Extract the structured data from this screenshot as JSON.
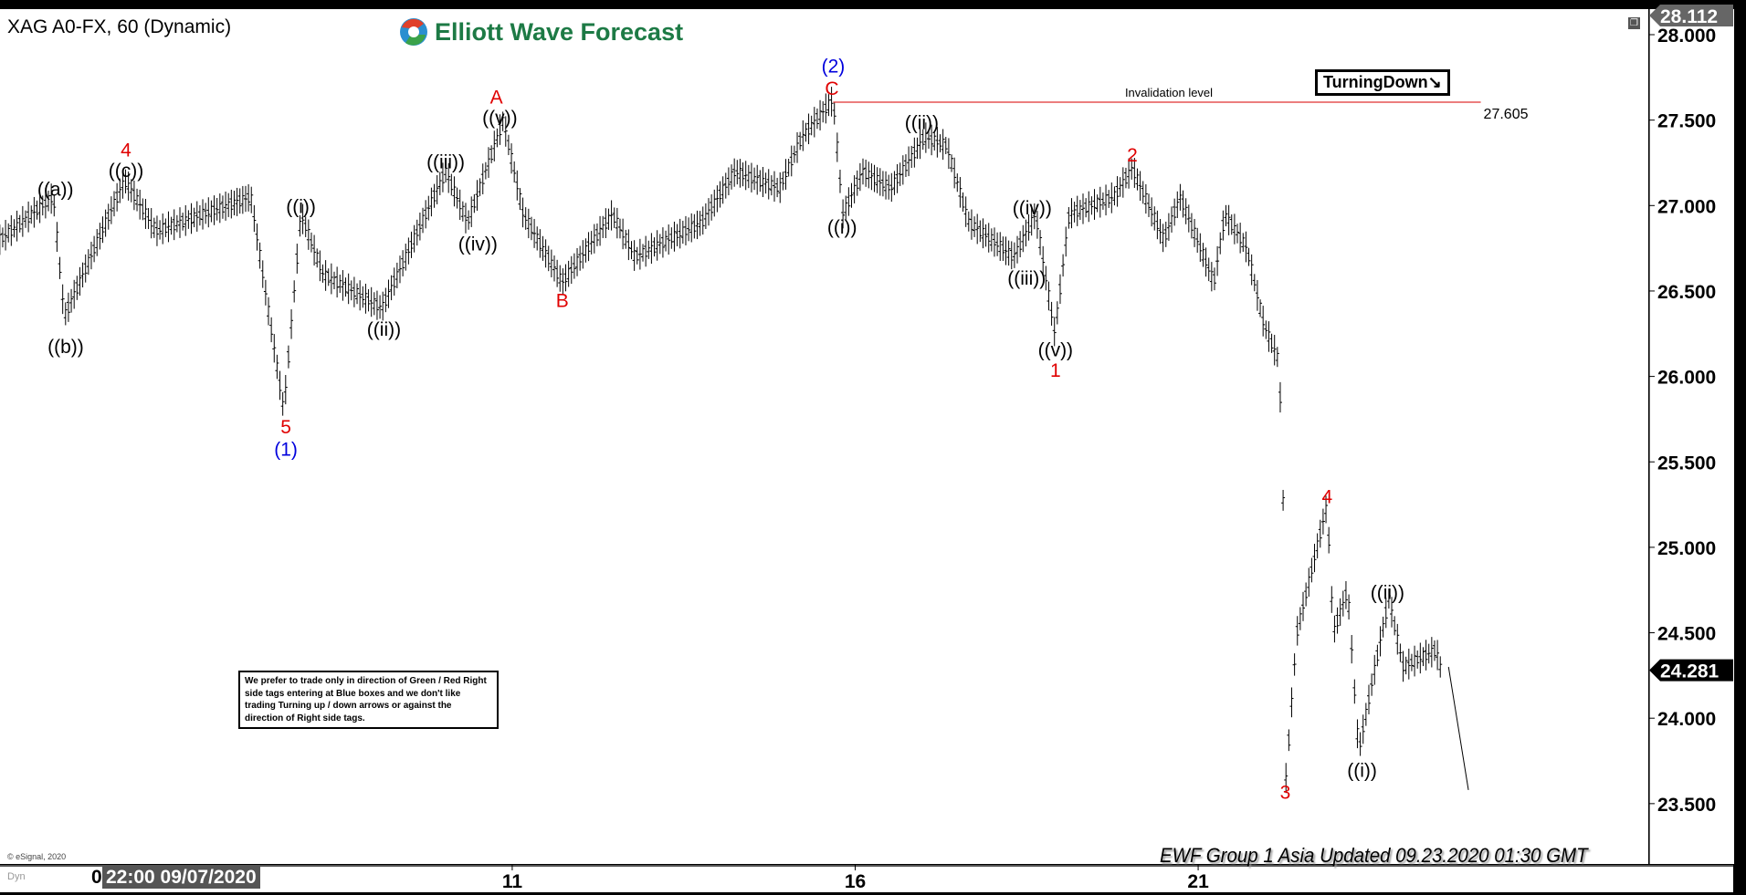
{
  "header": {
    "symbol_title": "XAG A0-FX, 60 (Dynamic)",
    "logo_text": "Elliott Wave Forecast"
  },
  "tags": {
    "turning": "TurningDown↘",
    "invalidation_label": "Invalidation level",
    "invalidation_value": "27.605"
  },
  "note": "We prefer to trade only in direction of Green / Red Right side tags entering at Blue boxes and we don't like trading Turning up / down arrows or against the direction of Right side tags.",
  "footer": {
    "updated": "EWF Group 1 Asia Updated 09.23.2020 01:30 GMT",
    "copyright": "© eSignal, 2020",
    "dyn": "Dyn",
    "start_label": "22:00 09/07/2020",
    "start_prefix": "0"
  },
  "colors": {
    "red": "#e00000",
    "blue": "#0000dd",
    "black": "#000000",
    "invalidation_line": "#e03030"
  },
  "chart_data": {
    "type": "ohlc-bar",
    "title": "XAG A0-FX, 60 (Dynamic)",
    "ylim": [
      23.3,
      28.15
    ],
    "y_ticks": [
      "28.000",
      "27.500",
      "27.000",
      "26.500",
      "26.000",
      "25.500",
      "25.000",
      "24.500",
      "24.000",
      "23.500"
    ],
    "x_ticks": [
      {
        "day": 11,
        "label": "11"
      },
      {
        "day": 16,
        "label": "16"
      },
      {
        "day": 21,
        "label": "21"
      }
    ],
    "price_tags": {
      "high": "28.112",
      "last": "24.281"
    },
    "invalidation": {
      "price": 27.605,
      "from_day": 15.68,
      "to_day": 25.12
    },
    "price_path": [
      [
        3.53,
        26.8
      ],
      [
        4.31,
        27.05
      ],
      [
        4.47,
        26.35
      ],
      [
        5.35,
        27.15
      ],
      [
        5.81,
        26.85
      ],
      [
        7.19,
        27.05
      ],
      [
        7.67,
        25.8
      ],
      [
        7.92,
        26.95
      ],
      [
        8.24,
        26.6
      ],
      [
        9.1,
        26.4
      ],
      [
        10.03,
        27.2
      ],
      [
        10.35,
        26.9
      ],
      [
        10.87,
        27.5
      ],
      [
        11.16,
        26.95
      ],
      [
        11.73,
        26.55
      ],
      [
        12.46,
        26.95
      ],
      [
        12.79,
        26.7
      ],
      [
        13.76,
        26.9
      ],
      [
        14.25,
        27.2
      ],
      [
        14.9,
        27.1
      ],
      [
        15.22,
        27.4
      ],
      [
        15.68,
        27.62
      ],
      [
        15.82,
        26.95
      ],
      [
        16.11,
        27.2
      ],
      [
        16.52,
        27.1
      ],
      [
        17.01,
        27.4
      ],
      [
        17.33,
        27.35
      ],
      [
        17.66,
        26.9
      ],
      [
        18.31,
        26.7
      ],
      [
        18.63,
        26.95
      ],
      [
        18.91,
        26.25
      ],
      [
        19.12,
        26.95
      ],
      [
        19.77,
        27.05
      ],
      [
        20.04,
        27.22
      ],
      [
        20.5,
        26.8
      ],
      [
        20.74,
        27.05
      ],
      [
        21.23,
        26.55
      ],
      [
        21.39,
        26.95
      ],
      [
        21.71,
        26.75
      ],
      [
        21.96,
        26.3
      ],
      [
        22.17,
        26.1
      ],
      [
        22.23,
        25.6
      ],
      [
        22.28,
        23.65
      ],
      [
        22.44,
        24.5
      ],
      [
        22.88,
        25.25
      ],
      [
        22.97,
        24.5
      ],
      [
        23.18,
        24.75
      ],
      [
        23.34,
        23.8
      ],
      [
        23.58,
        24.3
      ],
      [
        23.78,
        24.7
      ],
      [
        23.99,
        24.3
      ],
      [
        24.47,
        24.4
      ],
      [
        24.56,
        24.25
      ]
    ],
    "projection": [
      [
        24.65,
        24.3
      ],
      [
        24.94,
        23.58
      ]
    ],
    "wave_labels": [
      {
        "text": "((a))",
        "day": 4.34,
        "price": 27.1,
        "color": "black"
      },
      {
        "text": "((b))",
        "day": 4.49,
        "price": 26.18,
        "color": "black"
      },
      {
        "text": "4",
        "day": 5.37,
        "price": 27.33,
        "color": "red"
      },
      {
        "text": "((c))",
        "day": 5.37,
        "price": 27.21,
        "color": "black"
      },
      {
        "text": "((i))",
        "day": 7.92,
        "price": 27.0,
        "color": "black"
      },
      {
        "text": "5",
        "day": 7.7,
        "price": 25.71,
        "color": "red"
      },
      {
        "text": "(1)",
        "day": 7.7,
        "price": 25.58,
        "color": "blue"
      },
      {
        "text": "((ii))",
        "day": 9.13,
        "price": 26.28,
        "color": "black"
      },
      {
        "text": "((iii))",
        "day": 10.03,
        "price": 27.26,
        "color": "black"
      },
      {
        "text": "((iv))",
        "day": 10.5,
        "price": 26.78,
        "color": "black"
      },
      {
        "text": "A",
        "day": 10.77,
        "price": 27.64,
        "color": "red"
      },
      {
        "text": "((v))",
        "day": 10.82,
        "price": 27.52,
        "color": "black"
      },
      {
        "text": "B",
        "day": 11.73,
        "price": 26.45,
        "color": "red"
      },
      {
        "text": "(2)",
        "day": 15.68,
        "price": 27.82,
        "color": "blue"
      },
      {
        "text": "C",
        "day": 15.66,
        "price": 27.69,
        "color": "red"
      },
      {
        "text": "((i))",
        "day": 15.81,
        "price": 26.88,
        "color": "black"
      },
      {
        "text": "((ii))",
        "day": 16.97,
        "price": 27.49,
        "color": "black"
      },
      {
        "text": "((iv))",
        "day": 18.58,
        "price": 26.99,
        "color": "black"
      },
      {
        "text": "((iii))",
        "day": 18.5,
        "price": 26.58,
        "color": "black"
      },
      {
        "text": "((v))",
        "day": 18.92,
        "price": 26.16,
        "color": "black"
      },
      {
        "text": "1",
        "day": 18.92,
        "price": 26.04,
        "color": "red"
      },
      {
        "text": "2",
        "day": 20.04,
        "price": 27.3,
        "color": "red"
      },
      {
        "text": "3",
        "day": 22.27,
        "price": 23.57,
        "color": "red"
      },
      {
        "text": "4",
        "day": 22.88,
        "price": 25.3,
        "color": "red"
      },
      {
        "text": "((ii))",
        "day": 23.76,
        "price": 24.74,
        "color": "black"
      },
      {
        "text": "((i))",
        "day": 23.39,
        "price": 23.7,
        "color": "black"
      }
    ]
  }
}
